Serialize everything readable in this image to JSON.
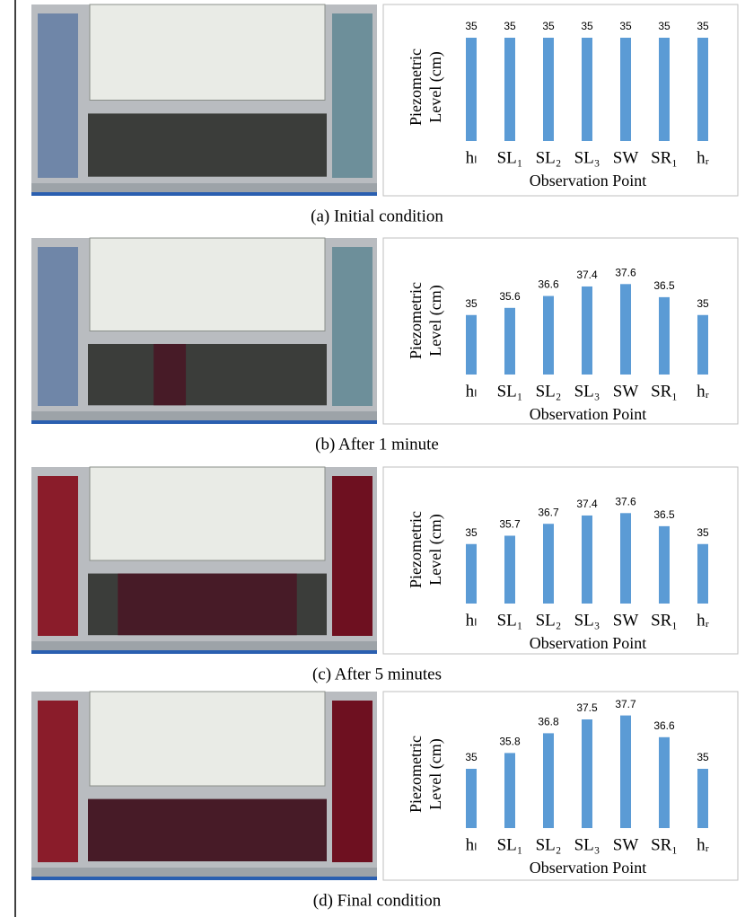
{
  "chart_data": [
    {
      "type": "bar",
      "title": "(a) Initial condition",
      "categories": [
        "hₗ",
        "SL₁",
        "SL₂",
        "SL₃",
        "SW",
        "SR₁",
        "hᵣ"
      ],
      "values": [
        35,
        35,
        35,
        35,
        35,
        35,
        35
      ],
      "color": "#5b9bd5",
      "ylim": [
        30,
        35
      ],
      "xlabel": "Observation Point",
      "ylabel": [
        "Piezometric",
        "Level (cm)"
      ]
    },
    {
      "type": "bar",
      "title": "(b) After 1 minute",
      "categories": [
        "hₗ",
        "SL₁",
        "SL₂",
        "SL₃",
        "SW",
        "SR₁",
        "hᵣ"
      ],
      "values": [
        35,
        35.6,
        36.6,
        37.4,
        37.6,
        36.5,
        35
      ],
      "color": "#5b9bd5",
      "ylim": [
        30,
        38
      ],
      "xlabel": "Observation Point",
      "ylabel": [
        "Piezometric",
        "Level (cm)"
      ]
    },
    {
      "type": "bar",
      "title": "(c) After 5 minutes",
      "categories": [
        "hₗ",
        "SL₁",
        "SL₂",
        "SL₃",
        "SW",
        "SR₁",
        "hᵣ"
      ],
      "values": [
        35,
        35.7,
        36.7,
        37.4,
        37.6,
        36.5,
        35
      ],
      "color": "#5b9bd5",
      "ylim": [
        30,
        38
      ],
      "xlabel": "Observation Point",
      "ylabel": [
        "Piezometric",
        "Level (cm)"
      ]
    },
    {
      "type": "bar",
      "title": "(d) Final condition",
      "categories": [
        "hₗ",
        "SL₁",
        "SL₂",
        "SL₃",
        "SW",
        "SR₁",
        "hᵣ"
      ],
      "values": [
        35,
        35.8,
        36.8,
        37.5,
        37.7,
        36.6,
        35
      ],
      "color": "#5b9bd5",
      "ylim": [
        32,
        38
      ],
      "xlabel": "Observation Point",
      "ylabel": [
        "Piezometric",
        "Level (cm)"
      ]
    }
  ]
}
